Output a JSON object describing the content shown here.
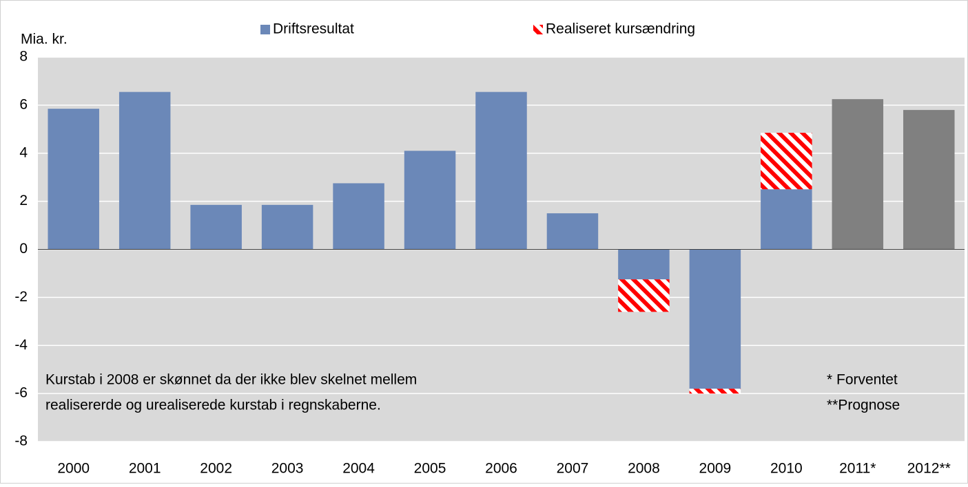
{
  "chart_data": {
    "type": "bar",
    "stacked": true,
    "y_label": "Mia. kr.",
    "categories": [
      "2000",
      "2001",
      "2002",
      "2003",
      "2004",
      "2005",
      "2006",
      "2007",
      "2008",
      "2009",
      "2010",
      "2011*",
      "2012**"
    ],
    "series": [
      {
        "name": "Driftsresultat",
        "color": "#6b88b8",
        "point_colors": [
          "#6b88b8",
          "#6b88b8",
          "#6b88b8",
          "#6b88b8",
          "#6b88b8",
          "#6b88b8",
          "#6b88b8",
          "#6b88b8",
          "#6b88b8",
          "#6b88b8",
          "#6b88b8",
          "#808080",
          "#808080"
        ],
        "values": [
          5.85,
          6.55,
          1.85,
          1.85,
          2.75,
          4.1,
          6.55,
          1.5,
          -1.25,
          -5.8,
          2.5,
          6.25,
          5.8
        ]
      },
      {
        "name": "Realiseret kursændring",
        "color": "#ff0000",
        "hatched": true,
        "values": [
          null,
          null,
          null,
          null,
          null,
          null,
          null,
          null,
          -1.35,
          -0.2,
          2.35,
          null,
          null
        ]
      }
    ],
    "ylim": [
      -8,
      8
    ],
    "yticks": [
      -8,
      -6,
      -4,
      -2,
      0,
      2,
      4,
      6,
      8
    ],
    "grid": true,
    "annotations": [
      "Kurstab i 2008 er skønnet da der ikke blev skelnet mellem",
      "realisererde og urealiserede kurstab i regnskaberne.",
      "* Forventet",
      "**Prognose"
    ]
  }
}
